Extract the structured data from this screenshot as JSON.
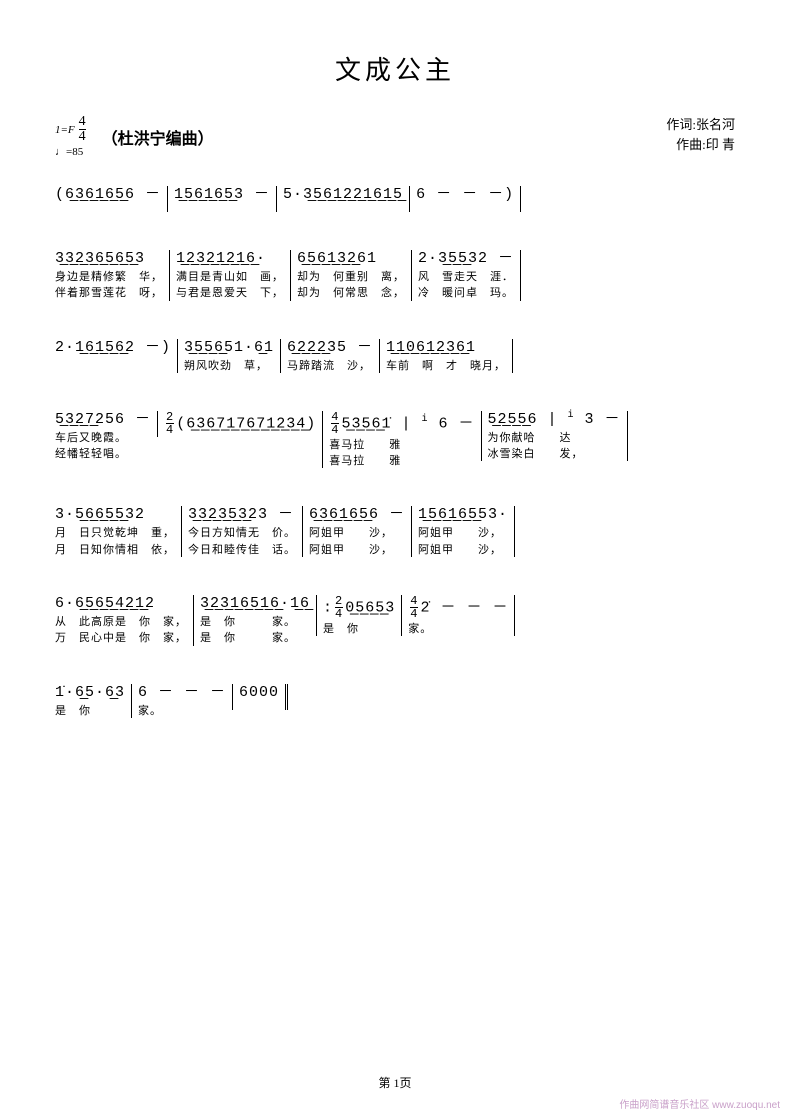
{
  "title": "文成公主",
  "time_signature": {
    "num": "4",
    "den": "4"
  },
  "key_text": "1=F",
  "tempo": "♩=85",
  "arranger": "（杜洪宁编曲）",
  "credits": {
    "lyricist": "作词:张名河",
    "composer": "作曲:印 青"
  },
  "lines": [
    {
      "bars": [
        {
          "notes": "(6̲3̲6̲1̲6̲5̲6 －",
          "lyrics": []
        },
        {
          "notes": "1̲5̲6̲1̲6̲5̲3 －",
          "lyrics": []
        },
        {
          "notes": "5·3̲5̲6̲1̲2̲2̲1̲6̲1̲5̲",
          "lyrics": []
        },
        {
          "notes": "6 － － －)",
          "lyrics": [],
          "end": true
        }
      ]
    },
    {
      "bars": [
        {
          "notes": "3̲3̲2̲3̲6̲5̲6̲5̲3",
          "lyrics": [
            "身边是精修繁　华，",
            "伴着那雪莲花　呀，"
          ]
        },
        {
          "notes": "1̲2̲3̲2̲1̲2̲1̲6̲·",
          "lyrics": [
            "满目是青山如　画，",
            "与君是恩爱天　下，"
          ]
        },
        {
          "notes": "6̲5̲6̲1̲3̲2̲61",
          "lyrics": [
            "却为　何重别　离，",
            "却为　何常思　念，"
          ]
        },
        {
          "notes": "2·3̲5̲5̲32 －",
          "lyrics": [
            "风　雪走天　涯．",
            "冷　暖问卓　玛。"
          ],
          "end": true
        }
      ]
    },
    {
      "bars": [
        {
          "notes": "2·1̲6̲1̲5̲6̲2 －)",
          "lyrics": []
        },
        {
          "notes": "3̲5̲5̲6̲51·6̲1",
          "lyrics": [
            "朔风吹劲　草，"
          ]
        },
        {
          "notes": "6̲2̲2̲2̲35 －",
          "lyrics": [
            "马蹄踏流　沙，"
          ]
        },
        {
          "notes": "1̲1̲0̲6̲1̲2̲3̲6̲1",
          "lyrics": [
            "车前　啊　才　晓月，"
          ],
          "end": true
        }
      ]
    },
    {
      "bars": [
        {
          "notes": "5̲3̲2̲7̲256 －",
          "lyrics": [
            "车后又晚霞。",
            "经幡轻轻唱。"
          ]
        },
        {
          "notes": "(6̲3̲6̲7̲1̲7̲6̲7̲1̲2̲3̲4̲)",
          "lyrics": [],
          "ts": "2/4"
        },
        {
          "notes": "5̲3̲5̲6̲1̇",
          "lyrics": [
            "喜马拉　　雅",
            "喜马拉　　雅"
          ],
          "ts": "4/4",
          "post": "6 －"
        },
        {
          "notes": "5̲2̲5̲5̲6",
          "lyrics": [
            "为你献哈　　达",
            "冰雪染白　　发，"
          ],
          "end": true,
          "post": "3 －"
        }
      ]
    },
    {
      "bars": [
        {
          "notes": "3·5̲6̲6̲5̲5̲32",
          "lyrics": [
            "月　日只觉乾坤　重，",
            "月　日知你情相　依，"
          ]
        },
        {
          "notes": "3̲3̲2̲3̲5̲3̲23 －",
          "lyrics": [
            "今日方知情无　价。",
            "今日和睦传佳　话。"
          ]
        },
        {
          "notes": "6̲3̲6̲1̲6̲5̲6 －",
          "lyrics": [
            "阿姐甲　　沙，",
            "阿姐甲　　沙，"
          ]
        },
        {
          "notes": "1̲5̲6̲1̲6̲5̲53·",
          "lyrics": [
            "阿姐甲　　沙，",
            "阿姐甲　　沙，"
          ],
          "end": true
        }
      ]
    },
    {
      "bars": [
        {
          "notes": "6·6̲5̲6̲5̲4̲2̲1̲2",
          "lyrics": [
            "从　此高原是　你　家，",
            "万　民心中是　你　家，"
          ]
        },
        {
          "notes": "3̲2̲3̲1̲6̲5̲1̲6̲·1̲6̲",
          "lyrics": [
            "是　你　　　家。",
            "是　你　　　家。"
          ]
        },
        {
          "notes": "0̲5̲6̲5̲3",
          "lyrics": [
            "是　你"
          ],
          "ts": "2/4",
          "repeat": true
        },
        {
          "notes": "2̇ － － －",
          "lyrics": [
            "家。"
          ],
          "ts": "4/4",
          "end": true
        }
      ]
    },
    {
      "bars": [
        {
          "notes": "1̇·6̲5·6̲3",
          "lyrics": [
            "是　你"
          ]
        },
        {
          "notes": "6 － － －",
          "lyrics": [
            "家。"
          ]
        },
        {
          "notes": "6000",
          "lyrics": [],
          "dend": true
        }
      ]
    }
  ],
  "page_footer": "第 1页",
  "watermark": "作曲网简谱音乐社区\nwww.zuoqu.net"
}
